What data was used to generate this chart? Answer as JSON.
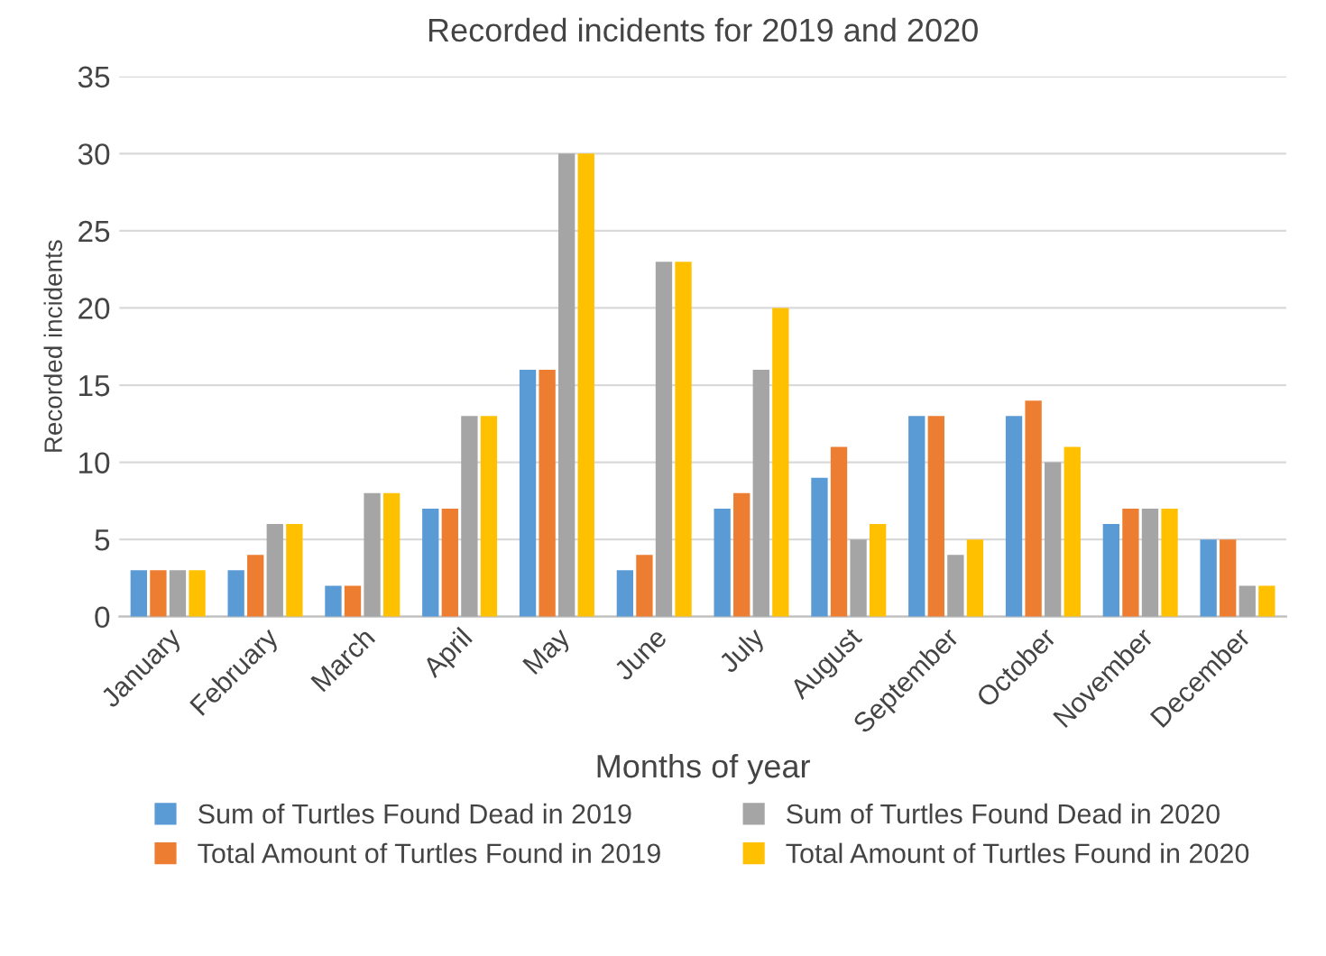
{
  "chart_data": {
    "type": "bar",
    "title": "Recorded incidents for 2019 and 2020",
    "xlabel": "Months of year",
    "ylabel": "Recorded incidents",
    "categories": [
      "January",
      "February",
      "March",
      "April",
      "May",
      "June",
      "July",
      "August",
      "September",
      "October",
      "November",
      "December"
    ],
    "series": [
      {
        "name": "Sum of Turtles Found Dead in 2019",
        "color": "#5b9bd5",
        "values": [
          3,
          3,
          2,
          7,
          16,
          3,
          7,
          9,
          13,
          13,
          6,
          5
        ]
      },
      {
        "name": "Total Amount of Turtles Found in 2019",
        "color": "#ed7d31",
        "values": [
          3,
          4,
          2,
          7,
          16,
          4,
          8,
          11,
          13,
          14,
          7,
          5
        ]
      },
      {
        "name": "Sum of Turtles Found Dead in 2020",
        "color": "#a5a5a5",
        "values": [
          3,
          6,
          8,
          13,
          30,
          23,
          16,
          5,
          4,
          10,
          7,
          2
        ]
      },
      {
        "name": "Total Amount of Turtles Found in 2020",
        "color": "#ffc000",
        "values": [
          3,
          6,
          8,
          13,
          30,
          23,
          20,
          6,
          5,
          11,
          7,
          2
        ]
      }
    ],
    "ylim": [
      0,
      35
    ],
    "yticks": [
      0,
      5,
      10,
      15,
      20,
      25,
      30,
      35
    ],
    "grid": "y",
    "legend": "bottom"
  }
}
